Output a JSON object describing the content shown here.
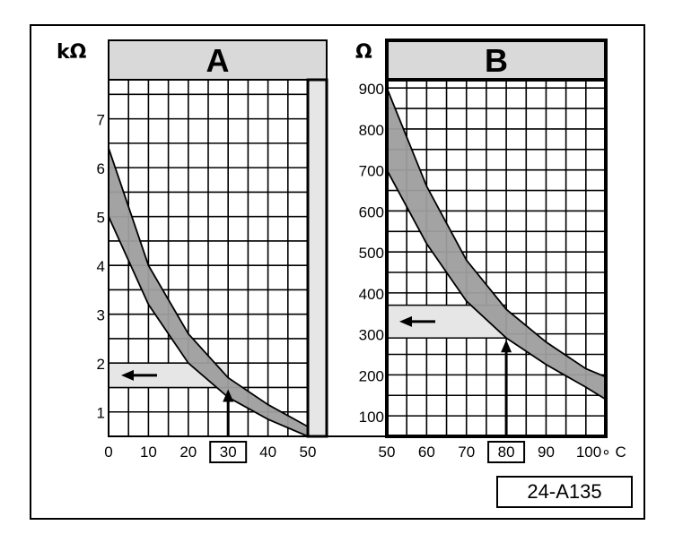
{
  "reference_code": "24-A135",
  "chart_data": [
    {
      "type": "area",
      "title": "A",
      "ylabel": "kΩ",
      "xlabel": "",
      "x_ticks": [
        "0",
        "10",
        "20",
        "30",
        "40",
        "50"
      ],
      "y_ticks": [
        "1",
        "2",
        "3",
        "4",
        "5",
        "6",
        "7"
      ],
      "xlim": [
        0,
        50
      ],
      "ylim": [
        0.5,
        7.8
      ],
      "grid": true,
      "highlighted_x": "30",
      "band": {
        "x": [
          0,
          10,
          20,
          30,
          40,
          50
        ],
        "upper": [
          6.4,
          4.0,
          2.6,
          1.7,
          1.15,
          0.7
        ],
        "lower": [
          5.0,
          3.2,
          2.0,
          1.3,
          0.85,
          0.5
        ]
      },
      "reading": {
        "x": 30,
        "y_range": [
          1.5,
          2.0
        ]
      }
    },
    {
      "type": "area",
      "title": "B",
      "ylabel": "Ω",
      "xlabel": "",
      "x_ticks": [
        "50",
        "60",
        "70",
        "80",
        "90",
        "100∘ C"
      ],
      "y_ticks": [
        "100",
        "200",
        "300",
        "400",
        "500",
        "600",
        "700",
        "800",
        "900"
      ],
      "xlim": [
        50,
        105
      ],
      "ylim": [
        50,
        920
      ],
      "grid": true,
      "highlighted_x": "80",
      "band": {
        "x": [
          50,
          60,
          70,
          80,
          90,
          100,
          105
        ],
        "upper": [
          900,
          660,
          480,
          360,
          280,
          215,
          195
        ],
        "lower": [
          700,
          520,
          380,
          290,
          225,
          170,
          140
        ]
      },
      "reading": {
        "x": 80,
        "y_range": [
          290,
          370
        ]
      }
    }
  ],
  "colors": {
    "band": "#9e9e9e",
    "header": "#d9d9d9",
    "reading_band": "#e6e6e6",
    "ink": "#000000"
  }
}
